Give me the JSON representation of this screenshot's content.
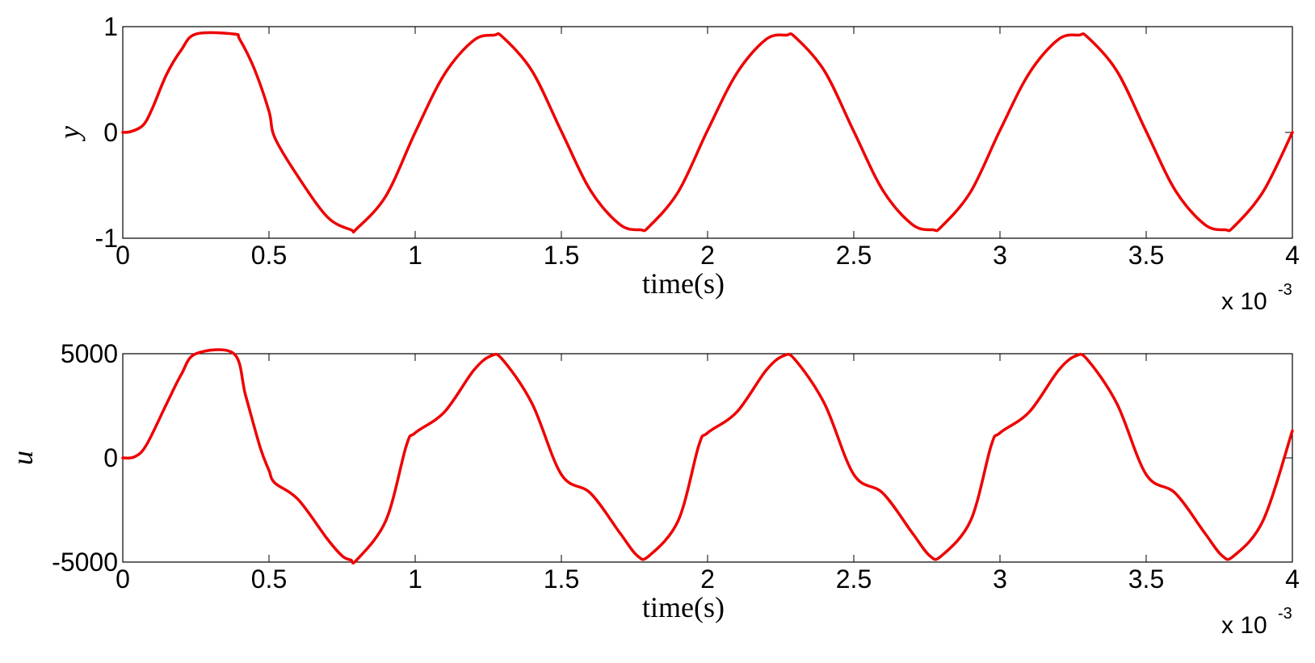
{
  "chart_data": [
    {
      "type": "line",
      "name": "top-plot",
      "xlabel": "time(s)",
      "ylabel": "y",
      "x_exponent_label": "x 10",
      "x_exponent_power": "-3",
      "xlim": [
        0,
        0.004
      ],
      "ylim": [
        -1,
        1
      ],
      "xticks": [
        0,
        0.0005,
        0.001,
        0.0015,
        0.002,
        0.0025,
        0.003,
        0.0035,
        0.004
      ],
      "xtick_labels": [
        "0",
        "0.5",
        "1",
        "1.5",
        "2",
        "2.5",
        "3",
        "3.5",
        "4"
      ],
      "yticks": [
        -1,
        0,
        1
      ],
      "ytick_labels": [
        "-1",
        "0",
        "1"
      ],
      "grid": false,
      "line_color": "#ee0000",
      "series": [
        {
          "x": [
            0,
            3e-05,
            7e-05,
            0.0001,
            0.00015,
            0.0002,
            0.00025,
            0.00038,
            0.0004,
            0.00045,
            0.0005,
            0.00052,
            0.0006,
            0.0007,
            0.00078,
            0.0008,
            0.0009,
            0.001,
            0.0011,
            0.0012,
            0.00127,
            0.0013,
            0.0014,
            0.0015,
            0.0016,
            0.0017,
            0.00177,
            0.0018,
            0.0019,
            0.002,
            0.0021,
            0.0022,
            0.00227,
            0.0023,
            0.0024,
            0.0025,
            0.0026,
            0.0027,
            0.00277,
            0.0028,
            0.0029,
            0.003,
            0.0031,
            0.0032,
            0.00327,
            0.0033,
            0.0034,
            0.0035,
            0.0036,
            0.0037,
            0.00377,
            0.0038,
            0.0039,
            0.004
          ],
          "y": [
            0,
            0.01,
            0.07,
            0.22,
            0.55,
            0.78,
            0.93,
            0.93,
            0.88,
            0.6,
            0.2,
            -0.05,
            -0.42,
            -0.8,
            -0.92,
            -0.91,
            -0.6,
            0.0,
            0.55,
            0.87,
            0.92,
            0.9,
            0.58,
            0.01,
            -0.55,
            -0.87,
            -0.92,
            -0.89,
            -0.56,
            0.02,
            0.56,
            0.88,
            0.92,
            0.9,
            0.58,
            0.01,
            -0.55,
            -0.87,
            -0.92,
            -0.89,
            -0.56,
            0.02,
            0.56,
            0.88,
            0.92,
            0.9,
            0.58,
            0.01,
            -0.55,
            -0.87,
            -0.92,
            -0.89,
            -0.56,
            0.0
          ]
        }
      ]
    },
    {
      "type": "line",
      "name": "bottom-plot",
      "xlabel": "time(s)",
      "ylabel": "u",
      "x_exponent_label": "x 10",
      "x_exponent_power": "-3",
      "xlim": [
        0,
        0.004
      ],
      "ylim": [
        -5000,
        5000
      ],
      "xticks": [
        0,
        0.0005,
        0.001,
        0.0015,
        0.002,
        0.0025,
        0.003,
        0.0035,
        0.004
      ],
      "xtick_labels": [
        "0",
        "0.5",
        "1",
        "1.5",
        "2",
        "2.5",
        "3",
        "3.5",
        "4"
      ],
      "yticks": [
        -5000,
        0,
        5000
      ],
      "ytick_labels": [
        "-5000",
        "0",
        "5000"
      ],
      "grid": false,
      "line_color": "#ee0000",
      "series": [
        {
          "x": [
            0,
            4e-05,
            8e-05,
            0.00015,
            0.0002,
            0.00025,
            0.00038,
            0.00042,
            0.00047,
            0.0005,
            0.00052,
            0.0006,
            0.0007,
            0.00075,
            0.00078,
            0.0008,
            0.0009,
            0.00097,
            0.001,
            0.0011,
            0.0012,
            0.00126,
            0.0013,
            0.0014,
            0.0015,
            0.0016,
            0.0017,
            0.00176,
            0.0018,
            0.0019,
            0.00197,
            0.002,
            0.0021,
            0.0022,
            0.00226,
            0.0023,
            0.0024,
            0.0025,
            0.0026,
            0.0027,
            0.00276,
            0.0028,
            0.0029,
            0.00297,
            0.003,
            0.0031,
            0.0032,
            0.00326,
            0.0033,
            0.0034,
            0.0035,
            0.0036,
            0.0037,
            0.00376,
            0.0038,
            0.0039,
            0.004
          ],
          "y": [
            0,
            50,
            600,
            2600,
            4000,
            5000,
            5000,
            3000,
            500,
            -600,
            -1200,
            -2000,
            -3900,
            -4700,
            -4900,
            -4900,
            -3000,
            600,
            1200,
            2200,
            4200,
            4900,
            4700,
            2600,
            -800,
            -1700,
            -3600,
            -4700,
            -4700,
            -3000,
            600,
            1200,
            2200,
            4200,
            4900,
            4700,
            2600,
            -800,
            -1700,
            -3600,
            -4700,
            -4700,
            -3000,
            600,
            1200,
            2200,
            4200,
            4900,
            4700,
            2600,
            -800,
            -1700,
            -3600,
            -4700,
            -4700,
            -3000,
            1300
          ]
        }
      ]
    }
  ]
}
